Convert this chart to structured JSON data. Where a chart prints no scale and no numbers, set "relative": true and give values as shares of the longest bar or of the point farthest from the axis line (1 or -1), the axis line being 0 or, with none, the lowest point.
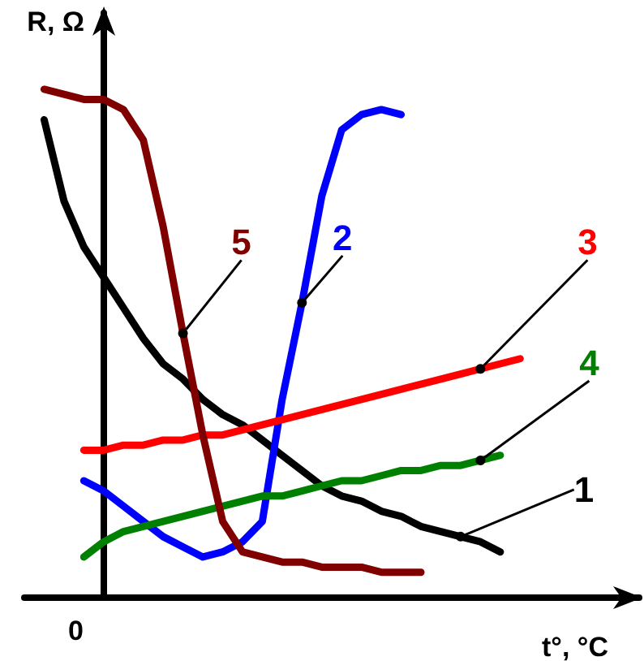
{
  "chart_data": {
    "type": "line",
    "relative": true,
    "xlabel": "t°, °C",
    "ylabel": "R, Ω",
    "annotations": [
      "0"
    ],
    "grid": false,
    "categories": [
      null,
      null,
      null,
      null,
      null,
      null,
      null,
      null,
      null,
      null,
      null,
      null,
      null,
      null,
      null,
      null,
      null,
      null,
      null,
      null,
      null,
      null,
      null,
      null,
      null,
      null,
      null,
      null,
      null,
      null,
      null,
      null
    ],
    "series": [
      {
        "name": "1",
        "color": "#000000",
        "values": [
          null,
          0.94,
          0.78,
          0.69,
          0.63,
          0.57,
          0.51,
          0.46,
          0.43,
          0.39,
          0.36,
          0.34,
          0.31,
          0.28,
          0.25,
          0.22,
          0.2,
          0.19,
          0.17,
          0.16,
          0.14,
          0.13,
          0.12,
          0.11,
          0.09,
          null,
          null,
          null,
          null,
          null,
          null,
          null
        ]
      },
      {
        "name": "2",
        "color": "#0000ff",
        "values": [
          null,
          null,
          null,
          0.23,
          0.21,
          0.18,
          0.15,
          0.12,
          0.1,
          0.08,
          0.09,
          0.11,
          0.15,
          0.39,
          0.58,
          0.79,
          0.92,
          0.95,
          0.96,
          0.95,
          null,
          null,
          null,
          null,
          null,
          null,
          null,
          null,
          null,
          null,
          null,
          null
        ]
      },
      {
        "name": "3",
        "color": "#ff0000",
        "values": [
          null,
          null,
          null,
          0.29,
          0.29,
          0.3,
          0.3,
          0.31,
          0.31,
          0.32,
          0.32,
          0.33,
          0.34,
          0.35,
          0.36,
          0.37,
          0.38,
          0.39,
          0.4,
          0.41,
          0.42,
          0.43,
          0.44,
          0.45,
          0.46,
          0.47,
          null,
          null,
          null,
          null,
          null,
          null
        ]
      },
      {
        "name": "4",
        "color": "#008000",
        "values": [
          null,
          null,
          null,
          0.08,
          0.11,
          0.13,
          0.14,
          0.15,
          0.16,
          0.17,
          0.18,
          0.19,
          0.2,
          0.2,
          0.21,
          0.22,
          0.23,
          0.23,
          0.24,
          0.25,
          0.25,
          0.26,
          0.26,
          0.27,
          0.28,
          null,
          null,
          null,
          null,
          null,
          null,
          null
        ]
      },
      {
        "name": "5",
        "color": "#800000",
        "values": [
          null,
          1.0,
          0.99,
          0.98,
          0.98,
          0.96,
          0.9,
          0.73,
          0.52,
          0.32,
          0.15,
          0.09,
          0.08,
          0.07,
          0.07,
          0.06,
          0.06,
          0.06,
          0.05,
          0.05,
          0.05,
          null,
          null,
          null,
          null,
          null,
          null,
          null,
          null,
          null,
          null,
          null
        ]
      }
    ]
  }
}
